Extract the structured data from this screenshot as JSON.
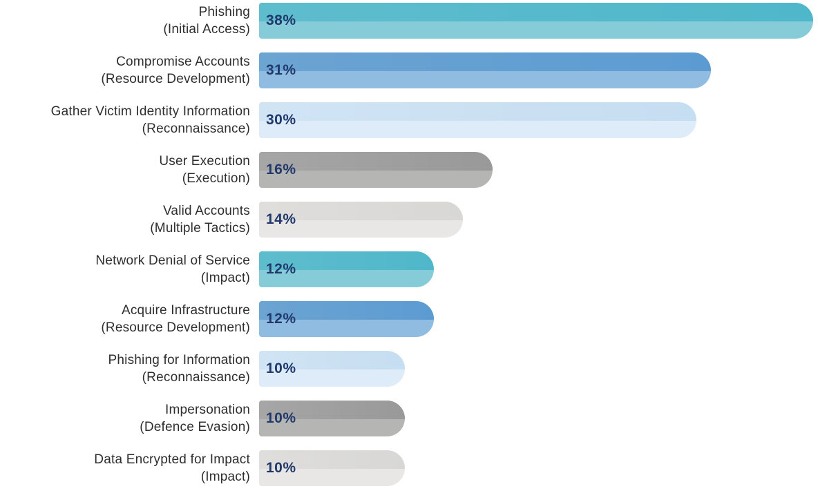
{
  "chart_data": {
    "type": "bar",
    "orientation": "horizontal",
    "title": "",
    "xlabel": "",
    "ylabel": "",
    "unit": "%",
    "xlim": [
      0,
      38
    ],
    "grid": false,
    "legend": false,
    "value_label_color": "#21386b",
    "category_label_color": "#2e2e2e",
    "categories": [
      "Phishing (Initial Access)",
      "Compromise Accounts (Resource Development)",
      "Gather Victim Identity Information (Reconnaissance)",
      "User Execution (Execution)",
      "Valid Accounts (Multiple Tactics)",
      "Network Denial of Service (Impact)",
      "Acquire Infrastructure (Resource Development)",
      "Phishing for Information (Reconnaissance)",
      "Impersonation (Defence Evasion)",
      "Data Encrypted for Impact (Impact)"
    ],
    "rows": [
      {
        "technique": "Phishing",
        "tactic": "(Initial Access)",
        "value": 38,
        "value_label": "38%",
        "palette": "teal"
      },
      {
        "technique": "Compromise Accounts",
        "tactic": "(Resource Development)",
        "value": 31,
        "value_label": "31%",
        "palette": "blue"
      },
      {
        "technique": "Gather Victim Identity Information",
        "tactic": "(Reconnaissance)",
        "value": 30,
        "value_label": "30%",
        "palette": "lightblue"
      },
      {
        "technique": "User Execution",
        "tactic": "(Execution)",
        "value": 16,
        "value_label": "16%",
        "palette": "gray"
      },
      {
        "technique": "Valid Accounts",
        "tactic": "(Multiple Tactics)",
        "value": 14,
        "value_label": "14%",
        "palette": "lightgray"
      },
      {
        "technique": "Network Denial of Service",
        "tactic": "(Impact)",
        "value": 12,
        "value_label": "12%",
        "palette": "teal"
      },
      {
        "technique": "Acquire Infrastructure",
        "tactic": "(Resource Development)",
        "value": 12,
        "value_label": "12%",
        "palette": "blue"
      },
      {
        "technique": "Phishing for Information",
        "tactic": "(Reconnaissance)",
        "value": 10,
        "value_label": "10%",
        "palette": "lightblue"
      },
      {
        "technique": "Impersonation",
        "tactic": "(Defence Evasion)",
        "value": 10,
        "value_label": "10%",
        "palette": "gray"
      },
      {
        "technique": "Data Encrypted for Impact",
        "tactic": "(Impact)",
        "value": 10,
        "value_label": "10%",
        "palette": "lightgray"
      }
    ],
    "palette_colors": {
      "teal": {
        "top": "#5ebdcd",
        "top_right": "#4fb7ca",
        "bottom": "#85cbd8"
      },
      "blue": {
        "top": "#6ca4d2",
        "top_right": "#5c9bd2",
        "bottom": "#90bce1"
      },
      "lightblue": {
        "top": "#d0e4f4",
        "top_right": "#c6def1",
        "bottom": "#ddecf8"
      },
      "gray": {
        "top": "#a6a6a6",
        "top_right": "#999999",
        "bottom": "#b5b5b4"
      },
      "lightgray": {
        "top": "#dfdedc",
        "top_right": "#d8d7d5",
        "bottom": "#e8e7e5"
      }
    }
  }
}
